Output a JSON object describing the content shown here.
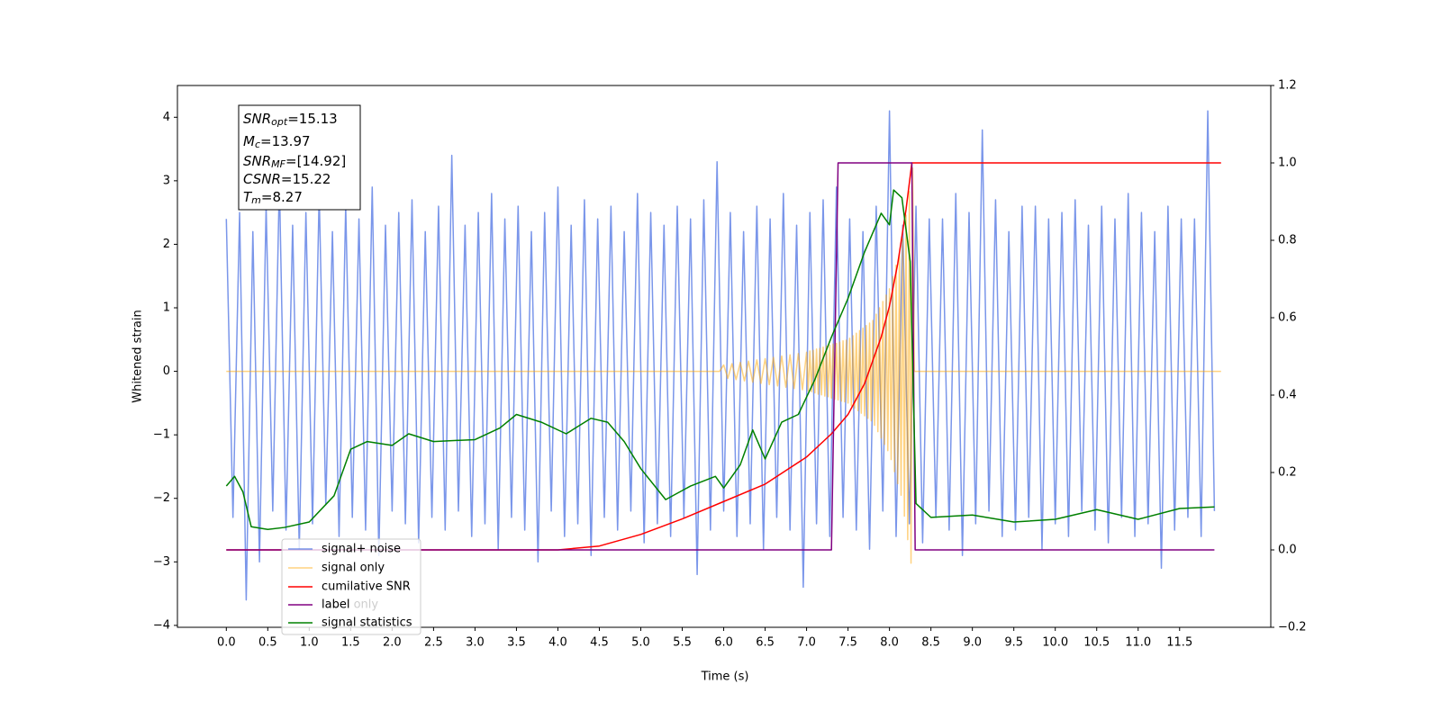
{
  "chart_data": {
    "type": "line",
    "xlabel": "Time (s)",
    "ylabel": "Whitened strain",
    "xlim": [
      -0.59,
      12.6
    ],
    "ylim": [
      -4.03,
      4.5
    ],
    "y2lim": [
      -0.2,
      1.2
    ],
    "xticks": [
      {
        "value": 0,
        "label": "0.0"
      },
      0.5,
      {
        "value": 1,
        "label": "1.0"
      },
      1.5,
      {
        "value": 2,
        "label": "2.0"
      },
      2.5,
      {
        "value": 3,
        "label": "3.0"
      },
      3.5,
      {
        "value": 4,
        "label": "4.0"
      },
      4.5,
      {
        "value": 5,
        "label": "5.0"
      },
      5.5,
      {
        "value": 6,
        "label": "6.0"
      },
      6.5,
      {
        "value": 7,
        "label": "7.0"
      },
      7.5,
      {
        "value": 8,
        "label": "8.0"
      },
      8.5,
      {
        "value": 9,
        "label": "9.0"
      },
      9.5,
      {
        "value": 10,
        "label": "10.0"
      },
      10.5,
      {
        "value": 11,
        "label": "11.0"
      },
      11.5
    ],
    "yticks": [
      {
        "value": -4,
        "label": "−4"
      },
      {
        "value": -3,
        "label": "−3"
      },
      {
        "value": -2,
        "label": "−2"
      },
      {
        "value": -1,
        "label": "−1"
      },
      0,
      1,
      2,
      3,
      4
    ],
    "y2ticks": [
      {
        "value": -0.2,
        "label": "−0.2"
      },
      {
        "value": 0,
        "label": "0.0"
      },
      0.2,
      0.4,
      0.6,
      0.8,
      {
        "value": 1,
        "label": "1.0"
      },
      1.2
    ],
    "annotations": [
      {
        "symbol": "SNR",
        "sub": "opt",
        "text": "=15.13"
      },
      {
        "symbol": "M",
        "sub": "c",
        "text": "=13.97"
      },
      {
        "symbol": "SNR",
        "sub": "MF",
        "text": "=[14.92]"
      },
      {
        "symbol": "CSNR",
        "text": "=15.22"
      },
      {
        "symbol": "T",
        "sub": "m",
        "text": "=8.27"
      }
    ],
    "legend2": [
      "label only"
    ],
    "series": [
      {
        "name": "signal+ noise",
        "color": "#4169e1",
        "opacity": 0.7,
        "x": [
          0,
          0.08,
          0.16,
          0.24,
          0.32,
          0.4,
          0.48,
          0.56,
          0.64,
          0.72,
          0.8,
          0.88,
          0.96,
          1.04,
          1.12,
          1.2,
          1.28,
          1.36,
          1.44,
          1.52,
          1.6,
          1.68,
          1.76,
          1.84,
          1.92,
          2,
          2.08,
          2.16,
          2.24,
          2.32,
          2.4,
          2.48,
          2.56,
          2.64,
          2.72,
          2.8,
          2.88,
          2.96,
          3.04,
          3.12,
          3.2,
          3.28,
          3.36,
          3.44,
          3.52,
          3.6,
          3.68,
          3.76,
          3.84,
          3.92,
          4,
          4.08,
          4.16,
          4.24,
          4.32,
          4.4,
          4.48,
          4.56,
          4.64,
          4.72,
          4.8,
          4.88,
          4.96,
          5.04,
          5.12,
          5.2,
          5.28,
          5.36,
          5.44,
          5.52,
          5.6,
          5.68,
          5.76,
          5.84,
          5.92,
          6,
          6.08,
          6.16,
          6.24,
          6.32,
          6.4,
          6.48,
          6.56,
          6.64,
          6.72,
          6.8,
          6.88,
          6.96,
          7.04,
          7.12,
          7.2,
          7.28,
          7.36,
          7.44,
          7.52,
          7.6,
          7.68,
          7.76,
          7.84,
          7.92,
          8,
          8.08,
          8.16,
          8.24,
          8.32,
          8.4,
          8.48,
          8.56,
          8.64,
          8.72,
          8.8,
          8.88,
          8.96,
          9.04,
          9.12,
          9.2,
          9.28,
          9.36,
          9.44,
          9.52,
          9.6,
          9.68,
          9.76,
          9.84,
          9.92,
          10,
          10.08,
          10.16,
          10.24,
          10.32,
          10.4,
          10.48,
          10.56,
          10.64,
          10.72,
          10.8,
          10.88,
          10.96,
          11.04,
          11.12,
          11.2,
          11.28,
          11.36,
          11.44,
          11.52,
          11.6,
          11.68,
          11.76,
          11.84,
          11.92
        ],
        "values": [
          2.4,
          -2.3,
          2.5,
          -3.6,
          2.2,
          -3.0,
          2.6,
          -2.2,
          3.0,
          -2.5,
          2.3,
          -2.8,
          2.5,
          -2.4,
          2.8,
          -2.1,
          2.2,
          -2.6,
          2.6,
          -2.3,
          2.4,
          -2.5,
          2.9,
          -2.9,
          2.3,
          -2.2,
          2.5,
          -2.4,
          2.7,
          -2.7,
          2.2,
          -2.3,
          2.6,
          -2.5,
          3.4,
          -2.2,
          2.3,
          -2.6,
          2.5,
          -2.4,
          2.8,
          -2.8,
          2.4,
          -2.3,
          2.6,
          -2.5,
          2.2,
          -3.0,
          2.5,
          -2.2,
          2.9,
          -2.6,
          2.3,
          -2.4,
          2.7,
          -2.9,
          2.4,
          -2.3,
          2.6,
          -2.5,
          2.2,
          -2.2,
          2.8,
          -2.7,
          2.5,
          -2.4,
          2.3,
          -2.6,
          2.6,
          -2.3,
          2.4,
          -3.2,
          2.7,
          -2.5,
          3.3,
          -2.2,
          2.5,
          -2.6,
          2.2,
          -2.4,
          2.6,
          -2.8,
          2.4,
          -2.3,
          2.8,
          -2.5,
          2.3,
          -3.4,
          2.5,
          -2.4,
          2.7,
          -2.6,
          2.9,
          -2.3,
          2.4,
          -2.5,
          2.2,
          -2.8,
          2.6,
          -2.2,
          4.1,
          -2.6,
          2.3,
          -2.4,
          2.6,
          -2.7,
          2.4,
          -2.3,
          2.4,
          -2.5,
          2.8,
          -2.9,
          2.5,
          -2.4,
          3.8,
          -2.2,
          2.7,
          -2.6,
          2.2,
          -2.5,
          2.6,
          -2.3,
          2.6,
          -2.8,
          2.4,
          -2.4,
          2.5,
          -2.6,
          2.7,
          -2.2,
          2.3,
          -2.5,
          2.6,
          -2.7,
          2.4,
          -2.3,
          2.8,
          -2.6,
          2.5,
          -2.4,
          2.2,
          -3.1,
          2.6,
          -2.5,
          2.4,
          -2.3,
          2.4,
          -2.6,
          4.1,
          -2.2
        ]
      },
      {
        "name": "signal only",
        "color": "#ffa500",
        "opacity": 0.5,
        "x": [
          0,
          5.95,
          6,
          6.05,
          6.1,
          6.15,
          6.2,
          6.25,
          6.3,
          6.35,
          6.4,
          6.45,
          6.5,
          6.55,
          6.6,
          6.65,
          6.7,
          6.75,
          6.8,
          6.85,
          6.9,
          6.95,
          7,
          7.02,
          7.04,
          7.06,
          7.08,
          7.1,
          7.12,
          7.14,
          7.16,
          7.18,
          7.2,
          7.22,
          7.24,
          7.26,
          7.28,
          7.3,
          7.32,
          7.34,
          7.36,
          7.38,
          7.4,
          7.42,
          7.44,
          7.46,
          7.48,
          7.5,
          7.52,
          7.54,
          7.56,
          7.58,
          7.6,
          7.62,
          7.64,
          7.66,
          7.68,
          7.7,
          7.72,
          7.74,
          7.76,
          7.78,
          7.8,
          7.82,
          7.84,
          7.86,
          7.88,
          7.9,
          7.92,
          7.94,
          7.96,
          7.98,
          8,
          8.02,
          8.04,
          8.06,
          8.08,
          8.1,
          8.12,
          8.14,
          8.16,
          8.18,
          8.2,
          8.22,
          8.24,
          8.26,
          8.28,
          8.3,
          12
        ],
        "values": [
          0,
          0,
          0.1,
          -0.11,
          0.12,
          -0.13,
          0.14,
          -0.15,
          0.16,
          -0.17,
          0.18,
          -0.19,
          0.2,
          -0.21,
          0.22,
          -0.23,
          0.24,
          -0.25,
          0.26,
          -0.27,
          0.28,
          -0.29,
          0.3,
          -0.31,
          0.32,
          -0.32,
          0.33,
          -0.34,
          0.35,
          -0.36,
          0.36,
          -0.37,
          0.38,
          -0.39,
          0.4,
          -0.4,
          0.41,
          -0.42,
          0.43,
          -0.44,
          0.44,
          -0.45,
          0.46,
          -0.47,
          0.48,
          -0.48,
          0.49,
          -0.5,
          0.52,
          -0.54,
          0.56,
          -0.58,
          0.6,
          -0.62,
          0.64,
          -0.66,
          0.68,
          -0.7,
          0.72,
          -0.74,
          0.76,
          -0.78,
          0.8,
          -0.85,
          0.9,
          -0.95,
          1.0,
          -1.05,
          1.1,
          -1.15,
          1.2,
          -1.25,
          1.3,
          -1.39,
          1.49,
          -1.58,
          1.67,
          -1.77,
          1.86,
          -1.95,
          2.09,
          -2.28,
          2.46,
          -2.65,
          2.83,
          -3.02,
          3.2,
          0,
          0
        ]
      },
      {
        "name": "cumilative SNR",
        "color": "#ff0000",
        "axis": "y2",
        "x": [
          0,
          4,
          4.5,
          5,
          5.5,
          6,
          6.5,
          7,
          7.3,
          7.5,
          7.7,
          7.9,
          8,
          8.1,
          8.2,
          8.27,
          12
        ],
        "values": [
          0,
          0,
          0.01,
          0.04,
          0.08,
          0.125,
          0.17,
          0.24,
          0.3,
          0.35,
          0.43,
          0.55,
          0.63,
          0.74,
          0.88,
          1,
          1
        ]
      },
      {
        "name": "label",
        "color": "#800080",
        "axis": "y2",
        "x": [
          0,
          7.3,
          7.38,
          8.27,
          8.31,
          11.92
        ],
        "values": [
          0,
          0,
          1,
          1,
          0,
          0
        ]
      },
      {
        "name": "signal statistics",
        "color": "#008000",
        "axis": "y2",
        "x": [
          0,
          0.1,
          0.2,
          0.3,
          0.5,
          0.7,
          1,
          1.3,
          1.5,
          1.7,
          2,
          2.2,
          2.5,
          3,
          3.3,
          3.5,
          3.8,
          4.1,
          4.4,
          4.6,
          4.8,
          5,
          5.3,
          5.6,
          5.9,
          6,
          6.2,
          6.35,
          6.5,
          6.7,
          6.9,
          7.1,
          7.3,
          7.5,
          7.7,
          7.9,
          8,
          8.05,
          8.15,
          8.25,
          8.32,
          8.5,
          9,
          9.5,
          10,
          10.5,
          11,
          11.5,
          11.92
        ],
        "values": [
          0.165,
          0.19,
          0.15,
          0.06,
          0.053,
          0.058,
          0.072,
          0.14,
          0.26,
          0.28,
          0.27,
          0.3,
          0.28,
          0.285,
          0.315,
          0.35,
          0.33,
          0.3,
          0.34,
          0.33,
          0.28,
          0.21,
          0.13,
          0.165,
          0.19,
          0.16,
          0.22,
          0.31,
          0.235,
          0.33,
          0.35,
          0.44,
          0.55,
          0.65,
          0.77,
          0.87,
          0.84,
          0.93,
          0.91,
          0.745,
          0.12,
          0.084,
          0.09,
          0.072,
          0.079,
          0.104,
          0.079,
          0.107,
          0.111
        ]
      }
    ]
  }
}
